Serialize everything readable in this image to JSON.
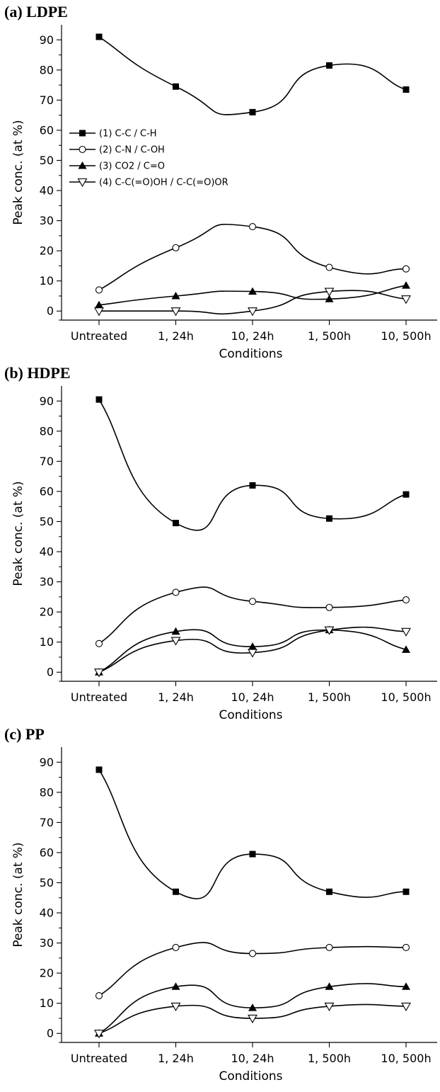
{
  "chart_data": [
    {
      "type": "line",
      "panel_label": "(a) LDPE",
      "xlabel": "Conditions",
      "ylabel": "Peak conc. (at %)",
      "ylim": [
        -3,
        95
      ],
      "yticks": [
        0,
        10,
        20,
        30,
        40,
        50,
        60,
        70,
        80,
        90
      ],
      "categories": [
        "Untreated",
        "1, 24h",
        "10, 24h",
        "1, 500h",
        "10, 500h"
      ],
      "legend": {
        "position": "center-left"
      },
      "series": [
        {
          "name": "(1) C-C / C-H",
          "marker": "filled-square",
          "values": [
            91,
            74.5,
            66,
            81.5,
            73.5
          ]
        },
        {
          "name": "(2) C-N / C-OH",
          "marker": "open-circle",
          "values": [
            7,
            21,
            28,
            14.5,
            14
          ]
        },
        {
          "name": "(3) CO2 / C=O",
          "marker": "filled-triangle",
          "values": [
            2,
            5,
            6.5,
            4,
            8.5
          ]
        },
        {
          "name": "(4) C-C(=O)OH / C-C(=O)OR",
          "marker": "open-triangle-down",
          "values": [
            0,
            0,
            0,
            6.5,
            4
          ]
        }
      ]
    },
    {
      "type": "line",
      "panel_label": "(b) HDPE",
      "xlabel": "Conditions",
      "ylabel": "Peak conc. (at %)",
      "ylim": [
        -3,
        95
      ],
      "yticks": [
        0,
        10,
        20,
        30,
        40,
        50,
        60,
        70,
        80,
        90
      ],
      "categories": [
        "Untreated",
        "1, 24h",
        "10, 24h",
        "1, 500h",
        "10, 500h"
      ],
      "series": [
        {
          "marker": "filled-square",
          "values": [
            90.5,
            49.5,
            62,
            51,
            59
          ]
        },
        {
          "marker": "open-circle",
          "values": [
            9.5,
            26.5,
            23.5,
            21.5,
            24
          ]
        },
        {
          "marker": "filled-triangle",
          "values": [
            0,
            13.5,
            8.5,
            14,
            7.5
          ]
        },
        {
          "marker": "open-triangle-down",
          "values": [
            0,
            10.5,
            6.5,
            14,
            13.5
          ]
        }
      ]
    },
    {
      "type": "line",
      "panel_label": "(c) PP",
      "xlabel": "Conditions",
      "ylabel": "Peak conc. (at %)",
      "ylim": [
        -3,
        95
      ],
      "yticks": [
        0,
        10,
        20,
        30,
        40,
        50,
        60,
        70,
        80,
        90
      ],
      "categories": [
        "Untreated",
        "1, 24h",
        "10, 24h",
        "1, 500h",
        "10, 500h"
      ],
      "series": [
        {
          "marker": "filled-square",
          "values": [
            87.5,
            47,
            59.5,
            47,
            47
          ]
        },
        {
          "marker": "open-circle",
          "values": [
            12.5,
            28.5,
            26.5,
            28.5,
            28.5
          ]
        },
        {
          "marker": "filled-triangle",
          "values": [
            0,
            15.5,
            8.5,
            15.5,
            15.5
          ]
        },
        {
          "marker": "open-triangle-down",
          "values": [
            0,
            9,
            5,
            9,
            9
          ]
        }
      ]
    }
  ]
}
